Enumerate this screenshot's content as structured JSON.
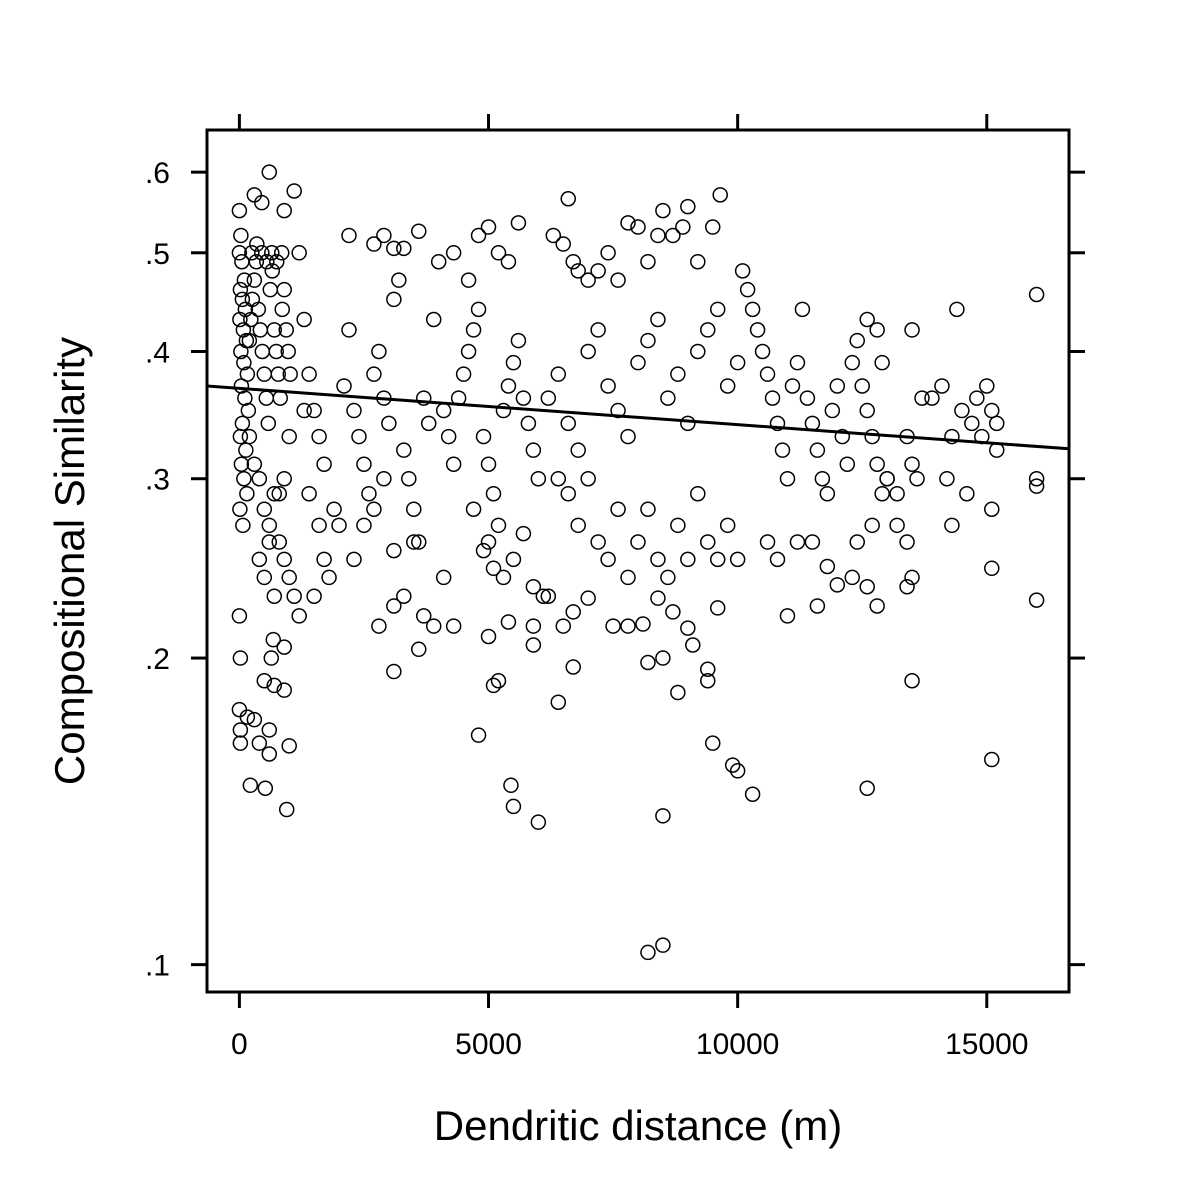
{
  "chart_data": {
    "type": "scatter",
    "title": "",
    "xlabel": "Dendritic distance (m)",
    "ylabel": "Compositional Similarity",
    "x_ticks": [
      0,
      5000,
      10000,
      15000
    ],
    "x_tick_labels": [
      "0",
      "5000",
      "10000",
      "15000"
    ],
    "y_ticks": [
      0.1,
      0.2,
      0.3,
      0.4,
      0.5,
      0.6
    ],
    "y_tick_labels": [
      ".1",
      ".2",
      ".3",
      ".4",
      ".5",
      ".6"
    ],
    "xlim": [
      -650,
      16650
    ],
    "ylim": [
      0.094,
      0.66
    ],
    "y_scale": "log",
    "grid": false,
    "legend": "none",
    "marker": "open-circle",
    "trend_line": {
      "x": [
        -650,
        16650
      ],
      "y": [
        0.37,
        0.321
      ]
    },
    "points": [
      [
        0,
        0.55
      ],
      [
        30,
        0.52
      ],
      [
        0,
        0.5
      ],
      [
        50,
        0.49
      ],
      [
        100,
        0.47
      ],
      [
        20,
        0.46
      ],
      [
        60,
        0.45
      ],
      [
        120,
        0.44
      ],
      [
        10,
        0.43
      ],
      [
        80,
        0.42
      ],
      [
        140,
        0.41
      ],
      [
        30,
        0.4
      ],
      [
        90,
        0.39
      ],
      [
        160,
        0.38
      ],
      [
        40,
        0.37
      ],
      [
        110,
        0.36
      ],
      [
        180,
        0.35
      ],
      [
        60,
        0.34
      ],
      [
        20,
        0.33
      ],
      [
        130,
        0.32
      ],
      [
        40,
        0.31
      ],
      [
        90,
        0.3
      ],
      [
        150,
        0.29
      ],
      [
        10,
        0.28
      ],
      [
        70,
        0.27
      ],
      [
        200,
        0.41
      ],
      [
        230,
        0.43
      ],
      [
        260,
        0.45
      ],
      [
        300,
        0.47
      ],
      [
        340,
        0.49
      ],
      [
        380,
        0.44
      ],
      [
        420,
        0.42
      ],
      [
        460,
        0.4
      ],
      [
        500,
        0.38
      ],
      [
        540,
        0.36
      ],
      [
        580,
        0.34
      ],
      [
        620,
        0.46
      ],
      [
        660,
        0.48
      ],
      [
        700,
        0.42
      ],
      [
        740,
        0.4
      ],
      [
        780,
        0.38
      ],
      [
        820,
        0.36
      ],
      [
        860,
        0.44
      ],
      [
        900,
        0.46
      ],
      [
        940,
        0.42
      ],
      [
        980,
        0.4
      ],
      [
        1020,
        0.38
      ],
      [
        250,
        0.5
      ],
      [
        350,
        0.51
      ],
      [
        450,
        0.5
      ],
      [
        550,
        0.49
      ],
      [
        650,
        0.5
      ],
      [
        750,
        0.49
      ],
      [
        850,
        0.5
      ],
      [
        300,
        0.57
      ],
      [
        450,
        0.56
      ],
      [
        600,
        0.6
      ],
      [
        900,
        0.55
      ],
      [
        1100,
        0.575
      ],
      [
        1200,
        0.5
      ],
      [
        1300,
        0.43
      ],
      [
        1400,
        0.38
      ],
      [
        1500,
        0.35
      ],
      [
        1600,
        0.33
      ],
      [
        1700,
        0.31
      ],
      [
        200,
        0.33
      ],
      [
        300,
        0.31
      ],
      [
        400,
        0.3
      ],
      [
        500,
        0.28
      ],
      [
        600,
        0.27
      ],
      [
        700,
        0.29
      ],
      [
        800,
        0.26
      ],
      [
        900,
        0.25
      ],
      [
        1000,
        0.24
      ],
      [
        1100,
        0.23
      ],
      [
        1200,
        0.22
      ],
      [
        400,
        0.25
      ],
      [
        500,
        0.24
      ],
      [
        600,
        0.26
      ],
      [
        700,
        0.23
      ],
      [
        800,
        0.29
      ],
      [
        900,
        0.3
      ],
      [
        1000,
        0.33
      ],
      [
        1300,
        0.35
      ],
      [
        1400,
        0.29
      ],
      [
        1500,
        0.23
      ],
      [
        1600,
        0.27
      ],
      [
        1700,
        0.25
      ],
      [
        1800,
        0.24
      ],
      [
        1900,
        0.28
      ],
      [
        2000,
        0.27
      ],
      [
        20,
        0.2
      ],
      [
        640,
        0.2
      ],
      [
        900,
        0.205
      ],
      [
        680,
        0.2085
      ],
      [
        0,
        0.178
      ],
      [
        20,
        0.17
      ],
      [
        300,
        0.174
      ],
      [
        600,
        0.17
      ],
      [
        400,
        0.165
      ],
      [
        600,
        0.161
      ],
      [
        1000,
        0.164
      ],
      [
        20,
        0.165
      ],
      [
        160,
        0.175
      ],
      [
        500,
        0.19
      ],
      [
        700,
        0.188
      ],
      [
        900,
        0.186
      ],
      [
        0,
        0.22
      ],
      [
        220,
        0.15
      ],
      [
        520,
        0.149
      ],
      [
        950,
        0.142
      ],
      [
        2100,
        0.37
      ],
      [
        2200,
        0.42
      ],
      [
        2300,
        0.35
      ],
      [
        2400,
        0.33
      ],
      [
        2500,
        0.31
      ],
      [
        2600,
        0.29
      ],
      [
        2700,
        0.38
      ],
      [
        2800,
        0.4
      ],
      [
        2900,
        0.36
      ],
      [
        3000,
        0.34
      ],
      [
        3100,
        0.45
      ],
      [
        3200,
        0.47
      ],
      [
        3300,
        0.32
      ],
      [
        3400,
        0.3
      ],
      [
        3500,
        0.28
      ],
      [
        3600,
        0.26
      ],
      [
        3700,
        0.36
      ],
      [
        3800,
        0.34
      ],
      [
        3900,
        0.43
      ],
      [
        4000,
        0.49
      ],
      [
        2200,
        0.52
      ],
      [
        2700,
        0.51
      ],
      [
        2900,
        0.52
      ],
      [
        3100,
        0.505
      ],
      [
        3300,
        0.505
      ],
      [
        3600,
        0.525
      ],
      [
        2300,
        0.25
      ],
      [
        2500,
        0.27
      ],
      [
        2700,
        0.28
      ],
      [
        2900,
        0.3
      ],
      [
        3100,
        0.255
      ],
      [
        3300,
        0.23
      ],
      [
        3500,
        0.26
      ],
      [
        3700,
        0.22
      ],
      [
        3900,
        0.215
      ],
      [
        4100,
        0.24
      ],
      [
        4300,
        0.215
      ],
      [
        2800,
        0.215
      ],
      [
        3100,
        0.225
      ],
      [
        3600,
        0.204
      ],
      [
        3100,
        0.194
      ],
      [
        4100,
        0.35
      ],
      [
        4200,
        0.33
      ],
      [
        4300,
        0.31
      ],
      [
        4400,
        0.36
      ],
      [
        4500,
        0.38
      ],
      [
        4600,
        0.4
      ],
      [
        4700,
        0.42
      ],
      [
        4800,
        0.44
      ],
      [
        4900,
        0.33
      ],
      [
        5000,
        0.31
      ],
      [
        5100,
        0.29
      ],
      [
        5200,
        0.27
      ],
      [
        5300,
        0.35
      ],
      [
        5400,
        0.37
      ],
      [
        5500,
        0.39
      ],
      [
        5600,
        0.41
      ],
      [
        5700,
        0.36
      ],
      [
        5800,
        0.34
      ],
      [
        5900,
        0.32
      ],
      [
        6000,
        0.3
      ],
      [
        4300,
        0.5
      ],
      [
        4600,
        0.47
      ],
      [
        4800,
        0.52
      ],
      [
        5000,
        0.53
      ],
      [
        5200,
        0.5
      ],
      [
        5400,
        0.49
      ],
      [
        5600,
        0.535
      ],
      [
        4700,
        0.28
      ],
      [
        4900,
        0.255
      ],
      [
        5000,
        0.26
      ],
      [
        5100,
        0.245
      ],
      [
        5300,
        0.24
      ],
      [
        5500,
        0.25
      ],
      [
        5700,
        0.265
      ],
      [
        5900,
        0.235
      ],
      [
        6100,
        0.23
      ],
      [
        5000,
        0.21
      ],
      [
        5200,
        0.19
      ],
      [
        5400,
        0.217
      ],
      [
        5900,
        0.215
      ],
      [
        5900,
        0.206
      ],
      [
        4800,
        0.168
      ],
      [
        5100,
        0.188
      ],
      [
        5450,
        0.15
      ],
      [
        5500,
        0.143
      ],
      [
        6000,
        0.138
      ],
      [
        6200,
        0.36
      ],
      [
        6400,
        0.38
      ],
      [
        6600,
        0.34
      ],
      [
        6800,
        0.32
      ],
      [
        7000,
        0.4
      ],
      [
        7200,
        0.42
      ],
      [
        7400,
        0.37
      ],
      [
        7600,
        0.35
      ],
      [
        7800,
        0.33
      ],
      [
        8000,
        0.39
      ],
      [
        8200,
        0.41
      ],
      [
        8400,
        0.43
      ],
      [
        8600,
        0.36
      ],
      [
        8800,
        0.38
      ],
      [
        9000,
        0.34
      ],
      [
        9200,
        0.4
      ],
      [
        9400,
        0.42
      ],
      [
        9600,
        0.44
      ],
      [
        9800,
        0.37
      ],
      [
        10000,
        0.39
      ],
      [
        6300,
        0.52
      ],
      [
        6500,
        0.51
      ],
      [
        6600,
        0.565
      ],
      [
        6700,
        0.49
      ],
      [
        6800,
        0.48
      ],
      [
        7000,
        0.47
      ],
      [
        7200,
        0.48
      ],
      [
        7400,
        0.5
      ],
      [
        7600,
        0.47
      ],
      [
        7800,
        0.535
      ],
      [
        8000,
        0.53
      ],
      [
        8200,
        0.49
      ],
      [
        8400,
        0.52
      ],
      [
        8500,
        0.55
      ],
      [
        8700,
        0.52
      ],
      [
        8900,
        0.53
      ],
      [
        9000,
        0.555
      ],
      [
        9200,
        0.49
      ],
      [
        9500,
        0.53
      ],
      [
        9650,
        0.57
      ],
      [
        6400,
        0.3
      ],
      [
        6600,
        0.29
      ],
      [
        6800,
        0.27
      ],
      [
        7000,
        0.3
      ],
      [
        7200,
        0.26
      ],
      [
        7400,
        0.25
      ],
      [
        7600,
        0.28
      ],
      [
        7800,
        0.24
      ],
      [
        8000,
        0.26
      ],
      [
        8200,
        0.28
      ],
      [
        8400,
        0.25
      ],
      [
        8600,
        0.24
      ],
      [
        8800,
        0.27
      ],
      [
        9000,
        0.25
      ],
      [
        9200,
        0.29
      ],
      [
        9400,
        0.26
      ],
      [
        9600,
        0.25
      ],
      [
        9800,
        0.27
      ],
      [
        10000,
        0.25
      ],
      [
        6200,
        0.23
      ],
      [
        6500,
        0.215
      ],
      [
        6700,
        0.222
      ],
      [
        7000,
        0.229
      ],
      [
        7500,
        0.215
      ],
      [
        7800,
        0.215
      ],
      [
        8100,
        0.216
      ],
      [
        8200,
        0.198
      ],
      [
        8400,
        0.229
      ],
      [
        8700,
        0.222
      ],
      [
        9000,
        0.214
      ],
      [
        9100,
        0.206
      ],
      [
        9400,
        0.195
      ],
      [
        9600,
        0.224
      ],
      [
        6700,
        0.196
      ],
      [
        6400,
        0.181
      ],
      [
        8500,
        0.2
      ],
      [
        8800,
        0.185
      ],
      [
        9400,
        0.19
      ],
      [
        9500,
        0.165
      ],
      [
        9900,
        0.157
      ],
      [
        10000,
        0.155
      ],
      [
        10300,
        0.147
      ],
      [
        8500,
        0.14
      ],
      [
        8500,
        0.1045
      ],
      [
        8200,
        0.1028
      ],
      [
        10100,
        0.48
      ],
      [
        10200,
        0.46
      ],
      [
        10300,
        0.44
      ],
      [
        10400,
        0.42
      ],
      [
        10500,
        0.4
      ],
      [
        10600,
        0.38
      ],
      [
        10700,
        0.36
      ],
      [
        10800,
        0.34
      ],
      [
        10900,
        0.32
      ],
      [
        11000,
        0.3
      ],
      [
        11100,
        0.37
      ],
      [
        11200,
        0.39
      ],
      [
        11300,
        0.44
      ],
      [
        11400,
        0.36
      ],
      [
        11500,
        0.34
      ],
      [
        11600,
        0.32
      ],
      [
        11700,
        0.3
      ],
      [
        11800,
        0.29
      ],
      [
        11900,
        0.35
      ],
      [
        12000,
        0.37
      ],
      [
        12100,
        0.33
      ],
      [
        12200,
        0.31
      ],
      [
        12300,
        0.39
      ],
      [
        12400,
        0.41
      ],
      [
        12500,
        0.37
      ],
      [
        12600,
        0.35
      ],
      [
        12700,
        0.33
      ],
      [
        12800,
        0.31
      ],
      [
        12900,
        0.29
      ],
      [
        13000,
        0.3
      ],
      [
        12600,
        0.43
      ],
      [
        12800,
        0.42
      ],
      [
        12900,
        0.39
      ],
      [
        13000,
        0.3
      ],
      [
        13200,
        0.29
      ],
      [
        13400,
        0.33
      ],
      [
        13500,
        0.31
      ],
      [
        13600,
        0.3
      ],
      [
        13700,
        0.36
      ],
      [
        13500,
        0.42
      ],
      [
        10600,
        0.26
      ],
      [
        10800,
        0.25
      ],
      [
        11000,
        0.22
      ],
      [
        11200,
        0.26
      ],
      [
        11500,
        0.26
      ],
      [
        11800,
        0.246
      ],
      [
        12000,
        0.236
      ],
      [
        12300,
        0.24
      ],
      [
        12600,
        0.235
      ],
      [
        12800,
        0.225
      ],
      [
        13200,
        0.27
      ],
      [
        13400,
        0.26
      ],
      [
        13500,
        0.24
      ],
      [
        13400,
        0.235
      ],
      [
        12400,
        0.26
      ],
      [
        12700,
        0.27
      ],
      [
        13500,
        0.19
      ],
      [
        12600,
        0.149
      ],
      [
        11600,
        0.225
      ],
      [
        14200,
        0.3
      ],
      [
        14300,
        0.27
      ],
      [
        14400,
        0.44
      ],
      [
        14500,
        0.35
      ],
      [
        14600,
        0.29
      ],
      [
        14700,
        0.34
      ],
      [
        14800,
        0.36
      ],
      [
        14900,
        0.33
      ],
      [
        15000,
        0.37
      ],
      [
        15100,
        0.35
      ],
      [
        15200,
        0.32
      ],
      [
        15100,
        0.28
      ],
      [
        15200,
        0.34
      ],
      [
        15100,
        0.245
      ],
      [
        15100,
        0.159
      ],
      [
        16000,
        0.3
      ],
      [
        16000,
        0.228
      ],
      [
        16000,
        0.455
      ],
      [
        16000,
        0.295
      ],
      [
        14300,
        0.33
      ],
      [
        14100,
        0.37
      ],
      [
        13900,
        0.36
      ]
    ]
  }
}
